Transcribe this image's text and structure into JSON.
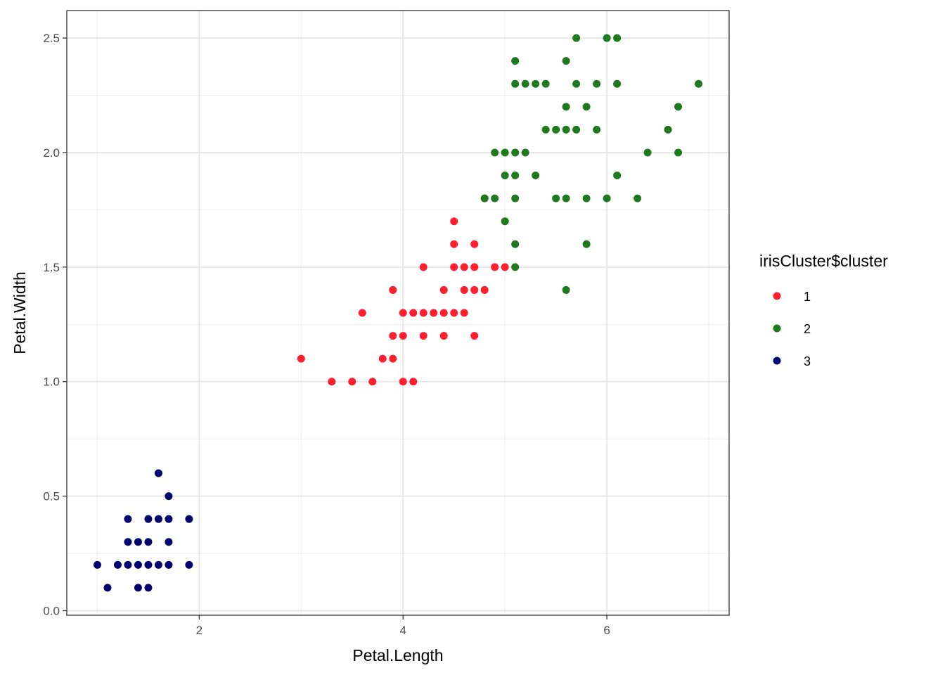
{
  "chart_data": {
    "type": "scatter",
    "xlabel": "Petal.Length",
    "ylabel": "Petal.Width",
    "xlim": [
      0.7,
      7.2
    ],
    "ylim": [
      -0.02,
      2.62
    ],
    "x_ticks": [
      2,
      4,
      6
    ],
    "x_tick_labels": [
      "2",
      "4",
      "6"
    ],
    "x_minor_ticks": [
      1,
      3,
      5,
      7
    ],
    "y_ticks": [
      0.0,
      0.5,
      1.0,
      1.5,
      2.0,
      2.5
    ],
    "y_tick_labels": [
      "0.0",
      "0.5",
      "1.0",
      "1.5",
      "2.0",
      "2.5"
    ],
    "y_minor_ticks": [
      0.25,
      0.75,
      1.25,
      1.75,
      2.25
    ],
    "grid": true,
    "legend": {
      "title": "irisCluster$cluster",
      "placement": "right",
      "entries": [
        {
          "label": "1",
          "color": "#FF1F2E"
        },
        {
          "label": "2",
          "color": "#1F7A1F"
        },
        {
          "label": "3",
          "color": "#00006E"
        }
      ]
    },
    "series": [
      {
        "name": "1",
        "color": "#FF1F2E",
        "points": [
          [
            3.0,
            1.1
          ],
          [
            3.3,
            1.0
          ],
          [
            3.5,
            1.0
          ],
          [
            3.6,
            1.3
          ],
          [
            3.7,
            1.0
          ],
          [
            3.8,
            1.1
          ],
          [
            3.9,
            1.1
          ],
          [
            3.9,
            1.2
          ],
          [
            3.9,
            1.4
          ],
          [
            4.0,
            1.0
          ],
          [
            4.0,
            1.2
          ],
          [
            4.0,
            1.3
          ],
          [
            4.1,
            1.0
          ],
          [
            4.1,
            1.3
          ],
          [
            4.2,
            1.2
          ],
          [
            4.2,
            1.3
          ],
          [
            4.2,
            1.5
          ],
          [
            4.3,
            1.3
          ],
          [
            4.4,
            1.2
          ],
          [
            4.4,
            1.3
          ],
          [
            4.4,
            1.4
          ],
          [
            4.5,
            1.3
          ],
          [
            4.5,
            1.5
          ],
          [
            4.5,
            1.6
          ],
          [
            4.5,
            1.7
          ],
          [
            4.6,
            1.3
          ],
          [
            4.6,
            1.4
          ],
          [
            4.6,
            1.5
          ],
          [
            4.7,
            1.2
          ],
          [
            4.7,
            1.4
          ],
          [
            4.7,
            1.5
          ],
          [
            4.7,
            1.6
          ],
          [
            4.8,
            1.4
          ],
          [
            4.8,
            1.8
          ],
          [
            4.9,
            1.5
          ],
          [
            5.0,
            1.5
          ]
        ]
      },
      {
        "name": "2",
        "color": "#1F7A1F",
        "points": [
          [
            4.8,
            1.8
          ],
          [
            4.9,
            1.8
          ],
          [
            4.9,
            2.0
          ],
          [
            5.0,
            1.7
          ],
          [
            5.0,
            1.9
          ],
          [
            5.0,
            2.0
          ],
          [
            5.1,
            1.5
          ],
          [
            5.1,
            1.6
          ],
          [
            5.1,
            1.8
          ],
          [
            5.1,
            1.9
          ],
          [
            5.1,
            2.0
          ],
          [
            5.1,
            2.3
          ],
          [
            5.1,
            2.4
          ],
          [
            5.2,
            2.0
          ],
          [
            5.2,
            2.3
          ],
          [
            5.3,
            1.9
          ],
          [
            5.3,
            2.3
          ],
          [
            5.4,
            2.1
          ],
          [
            5.4,
            2.3
          ],
          [
            5.5,
            1.8
          ],
          [
            5.5,
            2.1
          ],
          [
            5.6,
            1.4
          ],
          [
            5.6,
            1.8
          ],
          [
            5.6,
            2.1
          ],
          [
            5.6,
            2.2
          ],
          [
            5.6,
            2.4
          ],
          [
            5.7,
            2.1
          ],
          [
            5.7,
            2.3
          ],
          [
            5.7,
            2.5
          ],
          [
            5.8,
            1.6
          ],
          [
            5.8,
            1.8
          ],
          [
            5.8,
            2.2
          ],
          [
            5.9,
            2.1
          ],
          [
            5.9,
            2.3
          ],
          [
            6.0,
            1.8
          ],
          [
            6.0,
            2.5
          ],
          [
            6.1,
            1.9
          ],
          [
            6.1,
            2.3
          ],
          [
            6.1,
            2.5
          ],
          [
            6.3,
            1.8
          ],
          [
            6.4,
            2.0
          ],
          [
            6.6,
            2.1
          ],
          [
            6.7,
            2.0
          ],
          [
            6.7,
            2.2
          ],
          [
            6.9,
            2.3
          ]
        ]
      },
      {
        "name": "3",
        "color": "#00006E",
        "points": [
          [
            1.0,
            0.2
          ],
          [
            1.1,
            0.1
          ],
          [
            1.2,
            0.2
          ],
          [
            1.3,
            0.2
          ],
          [
            1.3,
            0.3
          ],
          [
            1.3,
            0.4
          ],
          [
            1.4,
            0.1
          ],
          [
            1.4,
            0.2
          ],
          [
            1.4,
            0.3
          ],
          [
            1.5,
            0.1
          ],
          [
            1.5,
            0.2
          ],
          [
            1.5,
            0.3
          ],
          [
            1.5,
            0.4
          ],
          [
            1.6,
            0.2
          ],
          [
            1.6,
            0.4
          ],
          [
            1.6,
            0.6
          ],
          [
            1.7,
            0.2
          ],
          [
            1.7,
            0.3
          ],
          [
            1.7,
            0.4
          ],
          [
            1.7,
            0.5
          ],
          [
            1.9,
            0.2
          ],
          [
            1.9,
            0.4
          ]
        ]
      }
    ]
  }
}
